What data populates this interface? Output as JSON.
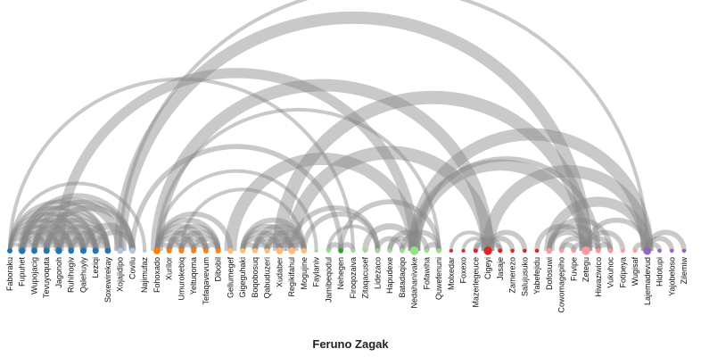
{
  "title": "Feruno Zagak",
  "chart_data": {
    "type": "arc",
    "nodes": [
      {
        "name": "Faboraku",
        "group": 1
      },
      {
        "name": "Fupuhet",
        "group": 1
      },
      {
        "name": "Wupojacig",
        "group": 1
      },
      {
        "name": "Tevuyoquta",
        "group": 1
      },
      {
        "name": "Jagonoh",
        "group": 1
      },
      {
        "name": "Ruhihogiv",
        "group": 1
      },
      {
        "name": "Qalehuyiy",
        "group": 1
      },
      {
        "name": "Leziqi",
        "group": 1
      },
      {
        "name": "Soxewirekay",
        "group": 1
      },
      {
        "name": "Xojajidipo",
        "group": 2
      },
      {
        "name": "Covilu",
        "group": 2
      },
      {
        "name": "Najimufaz",
        "group": 2
      },
      {
        "name": "Fohoxado",
        "group": 3
      },
      {
        "name": "Xurilor",
        "group": 3
      },
      {
        "name": "Umurokebiq",
        "group": 3
      },
      {
        "name": "Yeltuqoma",
        "group": 3
      },
      {
        "name": "Tefaqavevum",
        "group": 3
      },
      {
        "name": "Dibobil",
        "group": 3
      },
      {
        "name": "Gellumegef",
        "group": 4
      },
      {
        "name": "Gigeguhaki",
        "group": 4
      },
      {
        "name": "Boqobosuq",
        "group": 4
      },
      {
        "name": "Qabuduzeri",
        "group": 4
      },
      {
        "name": "Xudaber",
        "group": 4
      },
      {
        "name": "Regikifahul",
        "group": 4
      },
      {
        "name": "Mogujine",
        "group": 4
      },
      {
        "name": "Faylaniv",
        "group": 5
      },
      {
        "name": "Jamibeqodul",
        "group": 5
      },
      {
        "name": "Nehegen",
        "group": 6
      },
      {
        "name": "Firoqozaiva",
        "group": 5
      },
      {
        "name": "Zitaqacusef",
        "group": 5
      },
      {
        "name": "Lidezaco",
        "group": 5
      },
      {
        "name": "Hapudexe",
        "group": 5
      },
      {
        "name": "Batadaqiqo",
        "group": 5
      },
      {
        "name": "Nedahanivake",
        "group": 5
      },
      {
        "name": "Fofawiha",
        "group": 5
      },
      {
        "name": "Quwefenuni",
        "group": 5
      },
      {
        "name": "Molxedar",
        "group": 7
      },
      {
        "name": "Foxexo",
        "group": 7
      },
      {
        "name": "Mazerlegeuce",
        "group": 7
      },
      {
        "name": "Cigeyi",
        "group": 7
      },
      {
        "name": "Jasaje",
        "group": 7
      },
      {
        "name": "Zamerezo",
        "group": 7
      },
      {
        "name": "Salujusuko",
        "group": 7
      },
      {
        "name": "Yabefejidu",
        "group": 7
      },
      {
        "name": "Dofosuwi",
        "group": 8
      },
      {
        "name": "Cowomagepiho",
        "group": 8
      },
      {
        "name": "Fuvipe",
        "group": 8
      },
      {
        "name": "Zetegu",
        "group": 8
      },
      {
        "name": "Hiwaziwico",
        "group": 8
      },
      {
        "name": "Vukuhoc",
        "group": 8
      },
      {
        "name": "Fotipeya",
        "group": 8
      },
      {
        "name": "Wugisaf",
        "group": 8
      },
      {
        "name": "Lajemadevud",
        "group": 9
      },
      {
        "name": "Hidotupi",
        "group": 9
      },
      {
        "name": "Yajobeloso",
        "group": 9
      },
      {
        "name": "Zilemiw",
        "group": 9
      }
    ],
    "group_colors": {
      "1": "#1f77b4",
      "2": "#aec7e8",
      "3": "#ff7f0e",
      "4": "#ffbb78",
      "5": "#98df8a",
      "6": "#2ca02c",
      "7": "#d62728",
      "8": "#ff9896",
      "9": "#9467bd"
    },
    "link_color": "#888888",
    "links": [
      {
        "source": "Faboraku",
        "target": "Fupuhet",
        "value": 1
      },
      {
        "source": "Faboraku",
        "target": "Wupojacig",
        "value": 1
      },
      {
        "source": "Faboraku",
        "target": "Tevuyoquta",
        "value": 1
      },
      {
        "source": "Faboraku",
        "target": "Jagonoh",
        "value": 1
      },
      {
        "source": "Faboraku",
        "target": "Ruhihogiv",
        "value": 1
      },
      {
        "source": "Faboraku",
        "target": "Qalehuyiy",
        "value": 1
      },
      {
        "source": "Faboraku",
        "target": "Leziqi",
        "value": 1
      },
      {
        "source": "Faboraku",
        "target": "Soxewirekay",
        "value": 1
      },
      {
        "source": "Faboraku",
        "target": "Najimufaz",
        "value": 1
      },
      {
        "source": "Faboraku",
        "target": "Firoqozaiva",
        "value": 1
      },
      {
        "source": "Fupuhet",
        "target": "Wupojacig",
        "value": 2
      },
      {
        "source": "Fupuhet",
        "target": "Tevuyoquta",
        "value": 2
      },
      {
        "source": "Fupuhet",
        "target": "Jagonoh",
        "value": 2
      },
      {
        "source": "Fupuhet",
        "target": "Ruhihogiv",
        "value": 2
      },
      {
        "source": "Fupuhet",
        "target": "Qalehuyiy",
        "value": 2
      },
      {
        "source": "Fupuhet",
        "target": "Leziqi",
        "value": 2
      },
      {
        "source": "Fupuhet",
        "target": "Soxewirekay",
        "value": 2
      },
      {
        "source": "Fupuhet",
        "target": "Xojajidipo",
        "value": 6
      },
      {
        "source": "Fupuhet",
        "target": "Covilu",
        "value": 2
      },
      {
        "source": "Wupojacig",
        "target": "Tevuyoquta",
        "value": 2
      },
      {
        "source": "Wupojacig",
        "target": "Jagonoh",
        "value": 2
      },
      {
        "source": "Wupojacig",
        "target": "Ruhihogiv",
        "value": 2
      },
      {
        "source": "Wupojacig",
        "target": "Qalehuyiy",
        "value": 2
      },
      {
        "source": "Wupojacig",
        "target": "Leziqi",
        "value": 2
      },
      {
        "source": "Wupojacig",
        "target": "Soxewirekay",
        "value": 2
      },
      {
        "source": "Wupojacig",
        "target": "Covilu",
        "value": 2
      },
      {
        "source": "Tevuyoquta",
        "target": "Jagonoh",
        "value": 2
      },
      {
        "source": "Tevuyoquta",
        "target": "Ruhihogiv",
        "value": 2
      },
      {
        "source": "Tevuyoquta",
        "target": "Qalehuyiy",
        "value": 2
      },
      {
        "source": "Tevuyoquta",
        "target": "Leziqi",
        "value": 2
      },
      {
        "source": "Tevuyoquta",
        "target": "Soxewirekay",
        "value": 2
      },
      {
        "source": "Tevuyoquta",
        "target": "Covilu",
        "value": 3
      },
      {
        "source": "Jagonoh",
        "target": "Ruhihogiv",
        "value": 2
      },
      {
        "source": "Jagonoh",
        "target": "Qalehuyiy",
        "value": 2
      },
      {
        "source": "Jagonoh",
        "target": "Leziqi",
        "value": 2
      },
      {
        "source": "Jagonoh",
        "target": "Soxewirekay",
        "value": 2
      },
      {
        "source": "Jagonoh",
        "target": "Nedahanivake",
        "value": 8
      },
      {
        "source": "Ruhihogiv",
        "target": "Qalehuyiy",
        "value": 2
      },
      {
        "source": "Ruhihogiv",
        "target": "Leziqi",
        "value": 2
      },
      {
        "source": "Ruhihogiv",
        "target": "Soxewirekay",
        "value": 2
      },
      {
        "source": "Qalehuyiy",
        "target": "Leziqi",
        "value": 2
      },
      {
        "source": "Qalehuyiy",
        "target": "Soxewirekay",
        "value": 2
      },
      {
        "source": "Qalehuyiy",
        "target": "Covilu",
        "value": 4
      },
      {
        "source": "Leziqi",
        "target": "Soxewirekay",
        "value": 3
      },
      {
        "source": "Leziqi",
        "target": "Covilu",
        "value": 2
      },
      {
        "source": "Xojajidipo",
        "target": "Zetegu",
        "value": 12
      },
      {
        "source": "Xojajidipo",
        "target": "Lajemadevud",
        "value": 1
      },
      {
        "source": "Covilu",
        "target": "Nehegen",
        "value": 2
      },
      {
        "source": "Fohoxado",
        "target": "Xurilor",
        "value": 2
      },
      {
        "source": "Fohoxado",
        "target": "Umurokebiq",
        "value": 2
      },
      {
        "source": "Fohoxado",
        "target": "Yeltuqoma",
        "value": 2
      },
      {
        "source": "Fohoxado",
        "target": "Tefaqavevum",
        "value": 2
      },
      {
        "source": "Fohoxado",
        "target": "Dibobil",
        "value": 2
      },
      {
        "source": "Fohoxado",
        "target": "Gellumegef",
        "value": 2
      },
      {
        "source": "Fohoxado",
        "target": "Cigeyi",
        "value": 12
      },
      {
        "source": "Fohoxado",
        "target": "Quwefenuni",
        "value": 1
      },
      {
        "source": "Fohoxado",
        "target": "Faylaniv",
        "value": 1
      },
      {
        "source": "Xurilor",
        "target": "Umurokebiq",
        "value": 2
      },
      {
        "source": "Xurilor",
        "target": "Yeltuqoma",
        "value": 2
      },
      {
        "source": "Xurilor",
        "target": "Tefaqavevum",
        "value": 2
      },
      {
        "source": "Xurilor",
        "target": "Dibobil",
        "value": 2
      },
      {
        "source": "Umurokebiq",
        "target": "Yeltuqoma",
        "value": 2
      },
      {
        "source": "Umurokebiq",
        "target": "Tefaqavevum",
        "value": 2
      },
      {
        "source": "Umurokebiq",
        "target": "Dibobil",
        "value": 2
      },
      {
        "source": "Umurokebiq",
        "target": "Mogujine",
        "value": 1
      },
      {
        "source": "Yeltuqoma",
        "target": "Tefaqavevum",
        "value": 2
      },
      {
        "source": "Yeltuqoma",
        "target": "Dibobil",
        "value": 2
      },
      {
        "source": "Tefaqavevum",
        "target": "Dibobil",
        "value": 2
      },
      {
        "source": "Gellumegef",
        "target": "Nedahanivake",
        "value": 12
      },
      {
        "source": "Gigeguhaki",
        "target": "Boqobosuq",
        "value": 2
      },
      {
        "source": "Gigeguhaki",
        "target": "Qabuduzeri",
        "value": 2
      },
      {
        "source": "Gigeguhaki",
        "target": "Xudaber",
        "value": 2
      },
      {
        "source": "Gigeguhaki",
        "target": "Regikifahul",
        "value": 2
      },
      {
        "source": "Gigeguhaki",
        "target": "Mogujine",
        "value": 2
      },
      {
        "source": "Boqobosuq",
        "target": "Qabuduzeri",
        "value": 2
      },
      {
        "source": "Boqobosuq",
        "target": "Xudaber",
        "value": 2
      },
      {
        "source": "Boqobosuq",
        "target": "Regikifahul",
        "value": 2
      },
      {
        "source": "Boqobosuq",
        "target": "Mogujine",
        "value": 2
      },
      {
        "source": "Qabuduzeri",
        "target": "Xudaber",
        "value": 2
      },
      {
        "source": "Qabuduzeri",
        "target": "Regikifahul",
        "value": 2
      },
      {
        "source": "Qabuduzeri",
        "target": "Mogujine",
        "value": 2
      },
      {
        "source": "Xudaber",
        "target": "Regikifahul",
        "value": 2
      },
      {
        "source": "Xudaber",
        "target": "Mogujine",
        "value": 2
      },
      {
        "source": "Xudaber",
        "target": "Zetegu",
        "value": 14
      },
      {
        "source": "Regikifahul",
        "target": "Mogujine",
        "value": 2
      },
      {
        "source": "Regikifahul",
        "target": "Cigeyi",
        "value": 14
      },
      {
        "source": "Regikifahul",
        "target": "Lidezaco",
        "value": 2
      },
      {
        "source": "Mogujine",
        "target": "Lidezaco",
        "value": 2
      },
      {
        "source": "Jamibeqodul",
        "target": "Nehegen",
        "value": 2
      },
      {
        "source": "Jamibeqodul",
        "target": "Lidezaco",
        "value": 1
      },
      {
        "source": "Nehegen",
        "target": "Firoqozaiva",
        "value": 2
      },
      {
        "source": "Nehegen",
        "target": "Quwefenuni",
        "value": 2
      },
      {
        "source": "Lidezaco",
        "target": "Batadaqiqo",
        "value": 2
      },
      {
        "source": "Hapudexe",
        "target": "Nedahanivake",
        "value": 2
      },
      {
        "source": "Hapudexe",
        "target": "Fofawiha",
        "value": 2
      },
      {
        "source": "Batadaqiqo",
        "target": "Nedahanivake",
        "value": 2
      },
      {
        "source": "Batadaqiqo",
        "target": "Quwefenuni",
        "value": 2
      },
      {
        "source": "Zitaqacusef",
        "target": "Nedahanivake",
        "value": 3
      },
      {
        "source": "Nedahanivake",
        "target": "Lajemadevud",
        "value": 12
      },
      {
        "source": "Nedahanivake",
        "target": "Zetegu",
        "value": 10
      },
      {
        "source": "Nedahanivake",
        "target": "Hiwaziwico",
        "value": 2
      },
      {
        "source": "Fofawiha",
        "target": "Quwefenuni",
        "value": 2
      },
      {
        "source": "Mazerlegeuce",
        "target": "Cigeyi",
        "value": 2
      },
      {
        "source": "Mazerlegeuce",
        "target": "Jasaje",
        "value": 2
      },
      {
        "source": "Cigeyi",
        "target": "Jasaje",
        "value": 2
      },
      {
        "source": "Cigeyi",
        "target": "Zamerezo",
        "value": 2
      },
      {
        "source": "Cigeyi",
        "target": "Lajemadevud",
        "value": 12
      },
      {
        "source": "Cigeyi",
        "target": "Salujusuko",
        "value": 2
      },
      {
        "source": "Foxexo",
        "target": "Cigeyi",
        "value": 1
      },
      {
        "source": "Molxedar",
        "target": "Cigeyi",
        "value": 1
      },
      {
        "source": "Yabefejidu",
        "target": "Zetegu",
        "value": 2
      },
      {
        "source": "Dofosuwi",
        "target": "Zetegu",
        "value": 2
      },
      {
        "source": "Dofosuwi",
        "target": "Hiwaziwico",
        "value": 2
      },
      {
        "source": "Dofosuwi",
        "target": "Vukuhoc",
        "value": 2
      },
      {
        "source": "Dofosuwi",
        "target": "Lajemadevud",
        "value": 8
      },
      {
        "source": "Cowomagepiho",
        "target": "Zetegu",
        "value": 2
      },
      {
        "source": "Cowomagepiho",
        "target": "Fuvipe",
        "value": 2
      },
      {
        "source": "Fuvipe",
        "target": "Zetegu",
        "value": 2
      },
      {
        "source": "Zetegu",
        "target": "Hiwaziwico",
        "value": 2
      },
      {
        "source": "Zetegu",
        "target": "Vukuhoc",
        "value": 2
      },
      {
        "source": "Zetegu",
        "target": "Fotipeya",
        "value": 2
      },
      {
        "source": "Zetegu",
        "target": "Lajemadevud",
        "value": 2
      },
      {
        "source": "Hiwaziwico",
        "target": "Vukuhoc",
        "value": 2
      },
      {
        "source": "Wugisaf",
        "target": "Lajemadevud",
        "value": 2
      },
      {
        "source": "Lajemadevud",
        "target": "Hidotupi",
        "value": 2
      },
      {
        "source": "Lajemadevud",
        "target": "Yajobeloso",
        "value": 2
      },
      {
        "source": "Lajemadevud",
        "target": "Zilemiw",
        "value": 2
      }
    ]
  }
}
